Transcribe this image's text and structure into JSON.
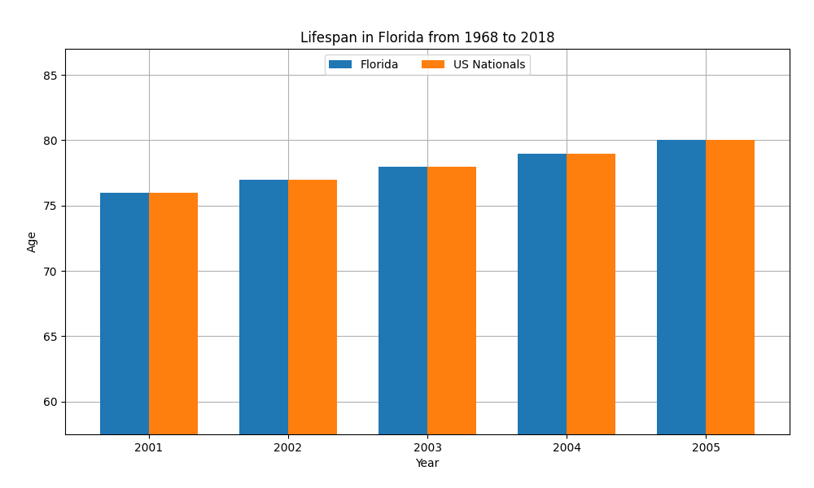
{
  "chart_data": {
    "type": "bar",
    "title": "Lifespan in Florida from 1968 to 2018",
    "x_label": "Year",
    "y_label": "Age",
    "categories": [
      "2001",
      "2002",
      "2003",
      "2004",
      "2005"
    ],
    "series": [
      {
        "name": "Florida",
        "values": [
          76.0,
          77.0,
          78.0,
          79.0,
          80.0
        ]
      },
      {
        "name": "US Nationals",
        "values": [
          76.0,
          77.0,
          78.0,
          79.0,
          80.0
        ]
      }
    ],
    "ylim": [
      57.5,
      87
    ],
    "yticks": [
      60,
      65,
      70,
      75,
      80,
      85
    ],
    "grid": true,
    "legend": "upper center"
  }
}
